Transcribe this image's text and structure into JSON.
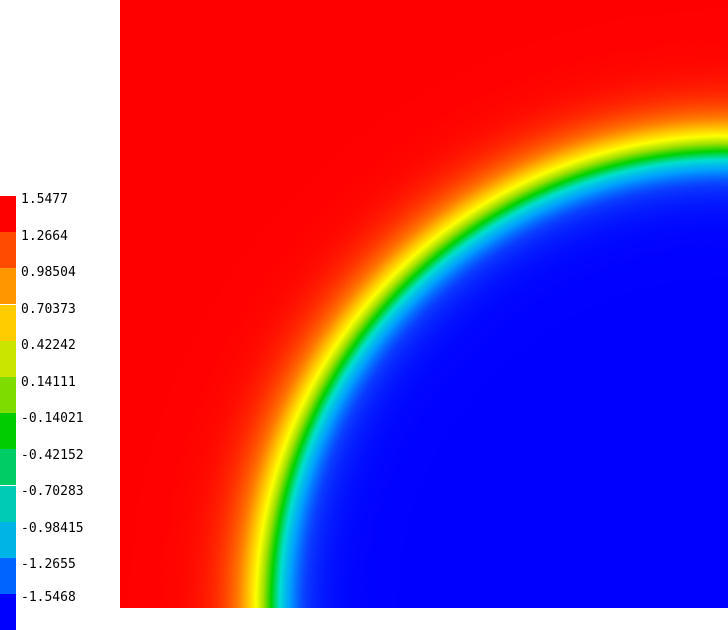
{
  "legend": {
    "ticks": [
      "1.5477",
      "1.2664",
      "0.98504",
      "0.70373",
      "0.42242",
      "0.14111",
      "-0.14021",
      "-0.42152",
      "-0.70283",
      "-0.98415",
      "-1.2655",
      "-1.5468"
    ],
    "band_colors": [
      "#ff0000",
      "#ff4a00",
      "#ff9600",
      "#ffcc00",
      "#c8e600",
      "#7fdc00",
      "#00cc00",
      "#00cc66",
      "#00ccb4",
      "#00b4e6",
      "#0064ff",
      "#0000ff"
    ]
  },
  "field": {
    "min": -1.5468,
    "max": 1.5477,
    "colormap": [
      "#0000ff",
      "#0a3cff",
      "#00a0ff",
      "#00e0d0",
      "#00d200",
      "#a0e000",
      "#ffff00",
      "#ffc000",
      "#ff7800",
      "#ff3c00",
      "#ff0000"
    ]
  }
}
